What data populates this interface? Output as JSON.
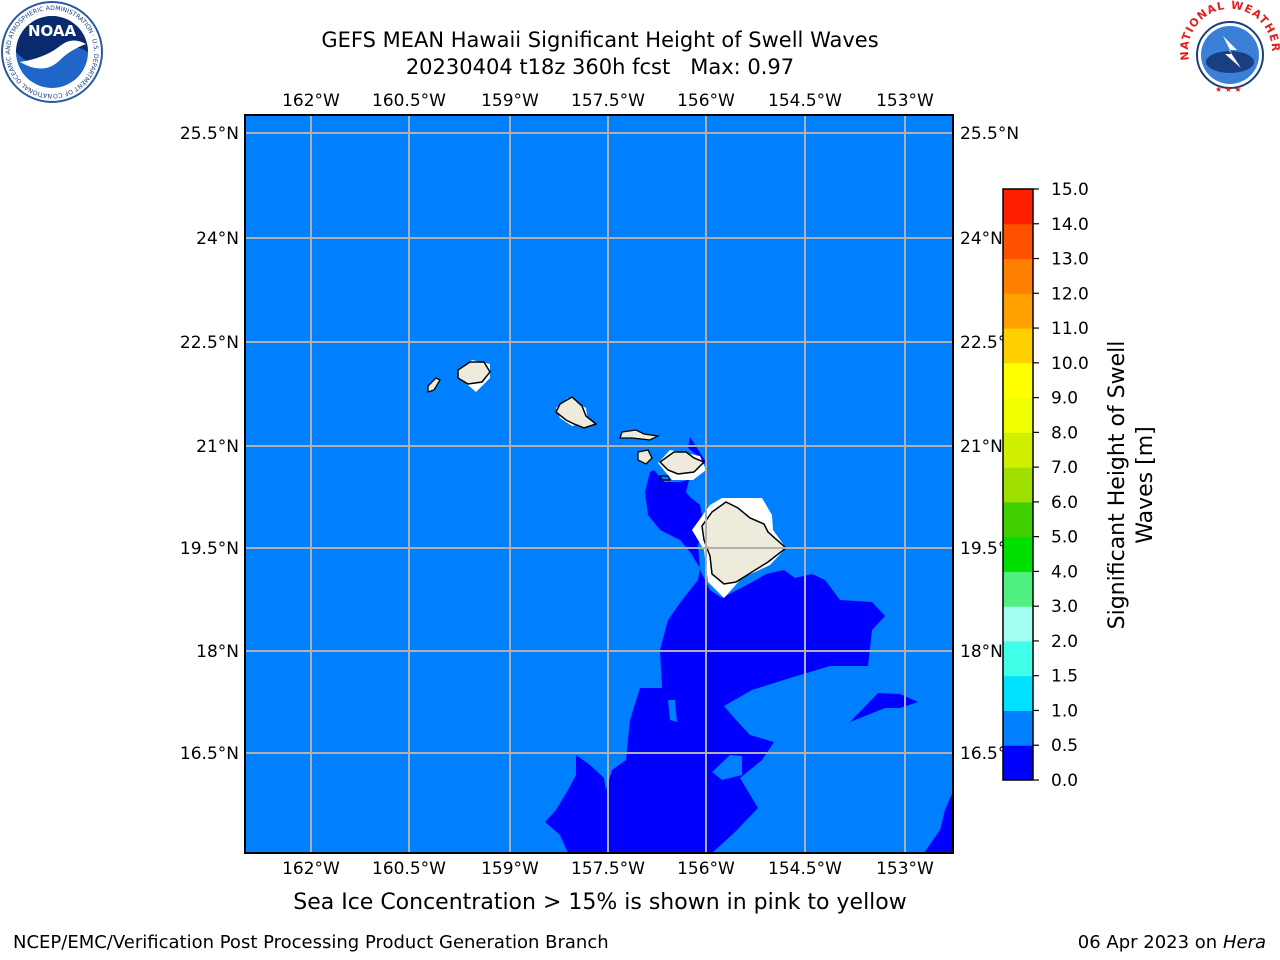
{
  "header": {
    "title_line1": "GEFS MEAN Hawaii Significant Height of Swell Waves",
    "title_line2": "20230404 t18z 360h fcst   Max: 0.97"
  },
  "logos": {
    "left": "NOAA",
    "left_ring_text": "NATIONAL OCEANIC AND ATMOSPHERIC ADMINISTRATION · U.S. DEPARTMENT OF COMMERCE",
    "right_ring_text": "NATIONAL WEATHER SERVICE"
  },
  "map": {
    "lon_labels": [
      "162°W",
      "160.5°W",
      "159°W",
      "157.5°W",
      "156°W",
      "154.5°W",
      "153°W"
    ],
    "lat_labels": [
      "25.5°N",
      "24°N",
      "22.5°N",
      "21°N",
      "19.5°N",
      "18°N",
      "16.5°N"
    ],
    "colors": {
      "ocean_0_5_1_0": "#0080ff",
      "ocean_0_0_0_5": "#0000ff",
      "land": "#eeebdc",
      "grid": "#b0b0b0"
    }
  },
  "colorbar": {
    "label_line1": "Significant Height of Swell",
    "label_line2": "Waves [m]",
    "ticks": [
      "0.0",
      "0.5",
      "1.0",
      "1.5",
      "2.0",
      "3.0",
      "4.0",
      "5.0",
      "6.0",
      "7.0",
      "8.0",
      "9.0",
      "10.0",
      "11.0",
      "12.0",
      "13.0",
      "14.0",
      "15.0"
    ],
    "colors": [
      "#0000ff",
      "#0080ff",
      "#00e0ff",
      "#40ffe8",
      "#a0fff0",
      "#50f080",
      "#00e000",
      "#40d000",
      "#a0e000",
      "#d0f000",
      "#f0ff00",
      "#ffff00",
      "#ffd000",
      "#ffa000",
      "#ff8000",
      "#ff5000",
      "#ff2000"
    ]
  },
  "note": "Sea Ice Concentration > 15% is shown in pink to yellow",
  "footer": {
    "left": "NCEP/EMC/Verification Post Processing Product Generation Branch",
    "right_prefix": "06 Apr 2023 on ",
    "right_host": "Hera"
  }
}
